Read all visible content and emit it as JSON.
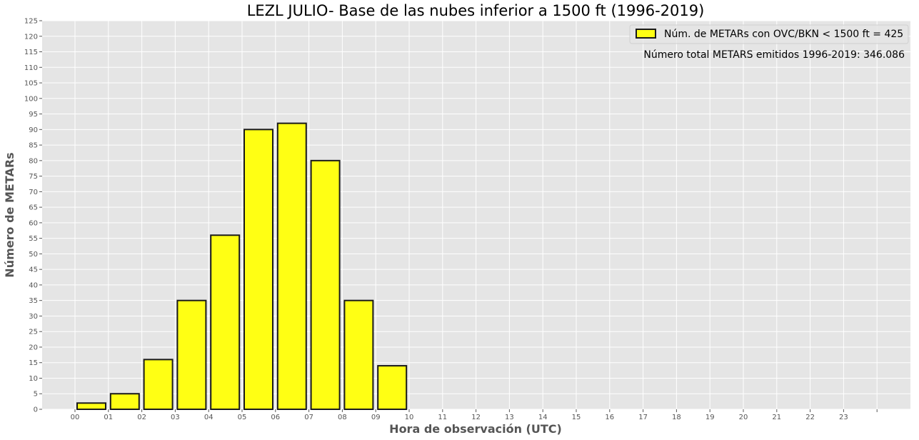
{
  "chart_data": {
    "type": "bar",
    "title": "LEZL JULIO- Base de las nubes inferior a 1500 ft (1996-2019)",
    "xlabel": "Hora de observación (UTC)",
    "ylabel": "Número de METARs",
    "categories": [
      "00",
      "01",
      "02",
      "03",
      "04",
      "05",
      "06",
      "07",
      "08",
      "09",
      "10",
      "11",
      "12",
      "13",
      "14",
      "15",
      "16",
      "17",
      "18",
      "19",
      "20",
      "21",
      "22",
      "23"
    ],
    "series": [
      {
        "name": "Núm. de METARs con OVC/BKN < 1500 ft = 425",
        "values": [
          2,
          5,
          16,
          35,
          56,
          90,
          92,
          80,
          35,
          14,
          0,
          0,
          0,
          0,
          0,
          0,
          0,
          0,
          0,
          0,
          0,
          0,
          0,
          0
        ]
      }
    ],
    "ylim": [
      0,
      125
    ],
    "yticks": [
      0,
      5,
      10,
      15,
      20,
      25,
      30,
      35,
      40,
      45,
      50,
      55,
      60,
      65,
      70,
      75,
      80,
      85,
      90,
      95,
      100,
      105,
      110,
      115,
      120,
      125
    ],
    "xtick_labels": [
      "00",
      "01",
      "02",
      "03",
      "04",
      "05",
      "06",
      "07",
      "08",
      "09",
      "10",
      "11",
      "12",
      "13",
      "14",
      "15",
      "16",
      "17",
      "18",
      "19",
      "20",
      "21",
      "22",
      "23",
      ""
    ],
    "annotation": "Número total METARS emitidos 1996-2019: 346.086",
    "legend_position": "top-right",
    "grid": true,
    "colors": {
      "bar_fill": "#ffff14",
      "bar_edge": "#1a1a1a",
      "plot_background": "#e5e5e5",
      "grid": "#ffffff",
      "text_muted": "#555555"
    }
  }
}
